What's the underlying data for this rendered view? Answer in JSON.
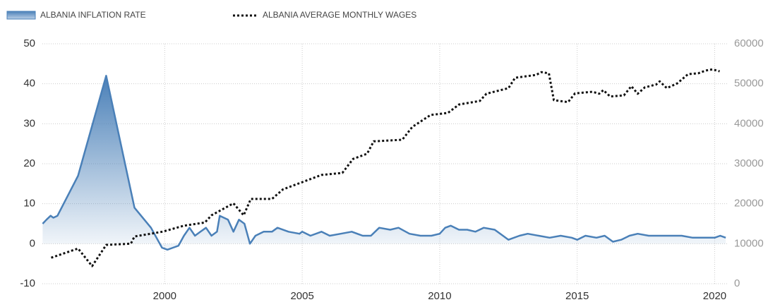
{
  "chart_data": {
    "type": "line",
    "xlim": [
      1995.55,
      2020.45
    ],
    "xticks": [
      2000,
      2005,
      2010,
      2015,
      2020
    ],
    "ylim": [
      -10,
      50
    ],
    "yticks": [
      -10,
      0,
      10,
      20,
      30,
      40,
      50
    ],
    "y2lim": [
      0,
      60000
    ],
    "y2ticks": [
      0,
      10000,
      20000,
      30000,
      40000,
      50000,
      60000
    ],
    "grid": true,
    "series": [
      {
        "name": "ALBANIA INFLATION RATE",
        "color": "#4a80b8",
        "axis": "y",
        "area": true,
        "x": [
          1995.56,
          1995.7,
          1995.85,
          1995.95,
          1996.1,
          1996.85,
          1997.87,
          1998.9,
          1999.5,
          1999.9,
          2000.1,
          2000.3,
          2000.5,
          2000.7,
          2000.9,
          2001.1,
          2001.3,
          2001.5,
          2001.7,
          2001.9,
          2002.0,
          2002.3,
          2002.5,
          2002.7,
          2002.9,
          2003.1,
          2003.3,
          2003.6,
          2003.9,
          2004.1,
          2004.5,
          2004.9,
          2005.0,
          2005.3,
          2005.7,
          2006.0,
          2006.4,
          2006.8,
          2007.2,
          2007.5,
          2007.8,
          2008.2,
          2008.5,
          2008.9,
          2009.3,
          2009.7,
          2010.0,
          2010.2,
          2010.4,
          2010.7,
          2011.0,
          2011.3,
          2011.6,
          2012.0,
          2012.3,
          2012.5,
          2012.9,
          2013.2,
          2013.6,
          2014.0,
          2014.4,
          2014.8,
          2015.0,
          2015.3,
          2015.7,
          2016.0,
          2016.3,
          2016.6,
          2016.9,
          2017.2,
          2017.6,
          2018.0,
          2018.4,
          2018.8,
          2019.2,
          2019.6,
          2020.0,
          2020.2,
          2020.4
        ],
        "values": [
          5,
          6,
          7,
          6.5,
          7,
          17,
          42,
          9,
          4,
          -1,
          -1.5,
          -1,
          -0.5,
          2,
          4,
          2,
          3,
          4,
          2,
          3,
          7,
          6,
          3,
          6,
          5,
          0,
          2,
          3,
          3,
          4,
          3,
          2.5,
          3,
          2,
          3,
          2,
          2.5,
          3,
          2,
          2,
          4,
          3.5,
          4,
          2.5,
          2,
          2,
          2.5,
          4,
          4.5,
          3.5,
          3.5,
          3,
          4,
          3.5,
          2,
          1,
          2,
          2.5,
          2,
          1.5,
          2,
          1.5,
          1,
          2,
          1.5,
          2,
          0.5,
          1,
          2,
          2.5,
          2,
          2,
          2,
          2,
          1.5,
          1.5,
          1.5,
          2,
          1.5
        ]
      },
      {
        "name": "ALBANIA AVERAGE MONTHLY WAGES",
        "color": "#111111",
        "axis": "y2",
        "dash": true,
        "x": [
          1995.87,
          1996.85,
          1997.36,
          1997.87,
          1998.77,
          1998.9,
          1999.92,
          2000.7,
          2001.46,
          2001.7,
          2002.5,
          2002.87,
          2003.13,
          2003.9,
          2004.3,
          2005.0,
          2005.7,
          2006.46,
          2006.85,
          2007.36,
          2007.6,
          2008.64,
          2009.0,
          2009.67,
          2010.3,
          2010.7,
          2011.46,
          2011.7,
          2012.5,
          2012.74,
          2013.5,
          2013.7,
          2013.97,
          2014.15,
          2014.67,
          2014.92,
          2015.56,
          2015.8,
          2015.95,
          2016.2,
          2016.7,
          2016.97,
          2017.2,
          2017.46,
          2017.87,
          2018.0,
          2018.26,
          2018.64,
          2019.03,
          2019.4,
          2019.67,
          2019.92,
          2020.18
        ],
        "values": [
          6500,
          8800,
          4400,
          9700,
          10000,
          11800,
          13000,
          14500,
          15300,
          17100,
          20100,
          17100,
          21200,
          21200,
          23600,
          25400,
          27200,
          27700,
          31200,
          32500,
          35600,
          36000,
          39200,
          42200,
          42700,
          44800,
          45700,
          47500,
          48900,
          51500,
          52200,
          52900,
          52600,
          45900,
          45400,
          47600,
          48000,
          47500,
          48400,
          46800,
          47100,
          49400,
          47500,
          49100,
          49800,
          50600,
          48900,
          50100,
          52400,
          52600,
          53300,
          53600,
          53100
        ]
      }
    ]
  }
}
